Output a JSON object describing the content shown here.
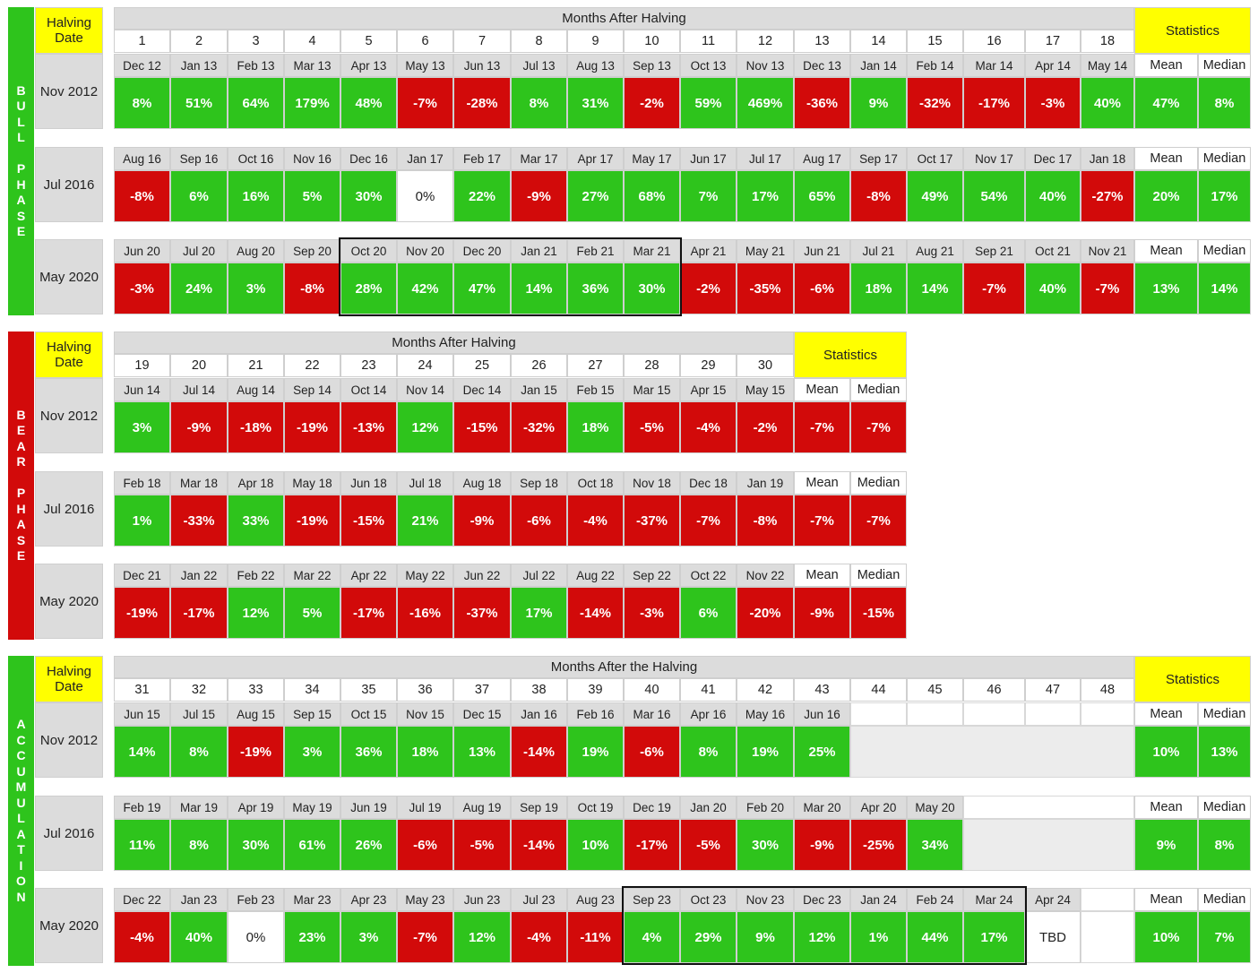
{
  "colors": {
    "green": "#2ec41c",
    "red": "#d20a0a",
    "yellow": "#ffff00",
    "gray": "#dcdcdc"
  },
  "labels": {
    "halving_date": "Halving Date",
    "statistics": "Statistics",
    "mean": "Mean",
    "median": "Median"
  },
  "sections": [
    {
      "key": "bull",
      "phase_label": "BULL PHASE",
      "phase_color": "#2ec41c",
      "title": "Months After Halving",
      "month_numbers": [
        "1",
        "2",
        "3",
        "4",
        "5",
        "6",
        "7",
        "8",
        "9",
        "10",
        "11",
        "12",
        "13",
        "14",
        "15",
        "16",
        "17",
        "18"
      ],
      "rows": [
        {
          "halving": "Nov 2012",
          "months": [
            "Dec 12",
            "Jan 13",
            "Feb 13",
            "Mar 13",
            "Apr 13",
            "May 13",
            "Jun 13",
            "Jul 13",
            "Aug 13",
            "Sep 13",
            "Oct 13",
            "Nov 13",
            "Dec 13",
            "Jan 14",
            "Feb 14",
            "Mar 14",
            "Apr 14",
            "May 14"
          ],
          "values": [
            "8%",
            "51%",
            "64%",
            "179%",
            "48%",
            "-7%",
            "-28%",
            "8%",
            "31%",
            "-2%",
            "59%",
            "469%",
            "-36%",
            "9%",
            "-32%",
            "-17%",
            "-3%",
            "40%"
          ],
          "mean": "47%",
          "median": "8%"
        },
        {
          "halving": "Jul 2016",
          "months": [
            "Aug 16",
            "Sep 16",
            "Oct 16",
            "Nov 16",
            "Dec 16",
            "Jan 17",
            "Feb 17",
            "Mar 17",
            "Apr 17",
            "May 17",
            "Jun 17",
            "Jul 17",
            "Aug 17",
            "Sep 17",
            "Oct 17",
            "Nov 17",
            "Dec 17",
            "Jan 18"
          ],
          "values": [
            "-8%",
            "6%",
            "16%",
            "5%",
            "30%",
            "0%",
            "22%",
            "-9%",
            "27%",
            "68%",
            "7%",
            "17%",
            "65%",
            "-8%",
            "49%",
            "54%",
            "40%",
            "-27%"
          ],
          "mean": "20%",
          "median": "17%"
        },
        {
          "halving": "May 2020",
          "months": [
            "Jun 20",
            "Jul 20",
            "Aug 20",
            "Sep 20",
            "Oct 20",
            "Nov 20",
            "Dec 20",
            "Jan 21",
            "Feb 21",
            "Mar 21",
            "Apr 21",
            "May 21",
            "Jun 21",
            "Jul 21",
            "Aug 21",
            "Sep 21",
            "Oct 21",
            "Nov 21"
          ],
          "values": [
            "-3%",
            "24%",
            "3%",
            "-8%",
            "28%",
            "42%",
            "47%",
            "14%",
            "36%",
            "30%",
            "-2%",
            "-35%",
            "-6%",
            "18%",
            "14%",
            "-7%",
            "40%",
            "-7%"
          ],
          "mean": "13%",
          "median": "14%"
        }
      ]
    },
    {
      "key": "bear",
      "phase_label": "BEAR PHASE",
      "phase_color": "#d20a0a",
      "title": "Months After Halving",
      "month_numbers": [
        "19",
        "20",
        "21",
        "22",
        "23",
        "24",
        "25",
        "26",
        "27",
        "28",
        "29",
        "30"
      ],
      "rows": [
        {
          "halving": "Nov 2012",
          "months": [
            "Jun 14",
            "Jul 14",
            "Aug 14",
            "Sep 14",
            "Oct 14",
            "Nov 14",
            "Dec 14",
            "Jan 15",
            "Feb 15",
            "Mar 15",
            "Apr 15",
            "May 15"
          ],
          "values": [
            "3%",
            "-9%",
            "-18%",
            "-19%",
            "-13%",
            "12%",
            "-15%",
            "-32%",
            "18%",
            "-5%",
            "-4%",
            "-2%"
          ],
          "mean": "-7%",
          "median": "-7%"
        },
        {
          "halving": "Jul 2016",
          "months": [
            "Feb 18",
            "Mar 18",
            "Apr 18",
            "May 18",
            "Jun 18",
            "Jul 18",
            "Aug 18",
            "Sep 18",
            "Oct 18",
            "Nov 18",
            "Dec 18",
            "Jan 19"
          ],
          "values": [
            "1%",
            "-33%",
            "33%",
            "-19%",
            "-15%",
            "21%",
            "-9%",
            "-6%",
            "-4%",
            "-37%",
            "-7%",
            "-8%"
          ],
          "mean": "-7%",
          "median": "-7%"
        },
        {
          "halving": "May 2020",
          "months": [
            "Dec 21",
            "Jan 22",
            "Feb 22",
            "Mar 22",
            "Apr 22",
            "May 22",
            "Jun 22",
            "Jul 22",
            "Aug 22",
            "Sep 22",
            "Oct 22",
            "Nov 22"
          ],
          "values": [
            "-19%",
            "-17%",
            "12%",
            "5%",
            "-17%",
            "-16%",
            "-37%",
            "17%",
            "-14%",
            "-3%",
            "6%",
            "-20%"
          ],
          "mean": "-9%",
          "median": "-15%"
        }
      ]
    },
    {
      "key": "accumulation",
      "phase_label": "ACCUMULATION",
      "phase_color": "#2ec41c",
      "title": "Months After the Halving",
      "month_numbers": [
        "31",
        "32",
        "33",
        "34",
        "35",
        "36",
        "37",
        "38",
        "39",
        "40",
        "41",
        "42",
        "43",
        "44",
        "45",
        "46",
        "47",
        "48"
      ],
      "rows": [
        {
          "halving": "Nov 2012",
          "months": [
            "Jun 15",
            "Jul 15",
            "Aug 15",
            "Sep 15",
            "Oct 15",
            "Nov 15",
            "Dec 15",
            "Jan 16",
            "Feb 16",
            "Mar 16",
            "Apr 16",
            "May 16",
            "Jun 16",
            "",
            "",
            "",
            "",
            ""
          ],
          "values": [
            "14%",
            "8%",
            "-19%",
            "3%",
            "36%",
            "18%",
            "13%",
            "-14%",
            "19%",
            "-6%",
            "8%",
            "19%",
            "25%",
            "",
            "",
            "",
            "",
            ""
          ],
          "mean": "10%",
          "median": "13%"
        },
        {
          "halving": "Jul 2016",
          "months": [
            "Feb 19",
            "Mar 19",
            "Apr 19",
            "May 19",
            "Jun 19",
            "Jul 19",
            "Aug 19",
            "Sep 19",
            "Oct 19",
            "Dec 19",
            "Jan 20",
            "Feb 20",
            "Mar 20",
            "Apr 20",
            "May 20",
            "",
            "",
            ""
          ],
          "values": [
            "11%",
            "8%",
            "30%",
            "61%",
            "26%",
            "-6%",
            "-5%",
            "-14%",
            "10%",
            "-17%",
            "-5%",
            "30%",
            "-9%",
            "-25%",
            "34%",
            "",
            "",
            ""
          ],
          "mean": "9%",
          "median": "8%"
        },
        {
          "halving": "May 2020",
          "months": [
            "Dec 22",
            "Jan 23",
            "Feb 23",
            "Mar 23",
            "Apr 23",
            "May 23",
            "Jun 23",
            "Jul 23",
            "Aug 23",
            "Sep 23",
            "Oct 23",
            "Nov 23",
            "Dec 23",
            "Jan 24",
            "Feb 24",
            "Mar 24",
            "Apr 24",
            ""
          ],
          "values": [
            "-4%",
            "40%",
            "0%",
            "23%",
            "3%",
            "-7%",
            "12%",
            "-4%",
            "-11%",
            "4%",
            "29%",
            "9%",
            "12%",
            "1%",
            "44%",
            "17%",
            "TBD",
            ""
          ],
          "mean": "10%",
          "median": "7%"
        }
      ]
    }
  ]
}
